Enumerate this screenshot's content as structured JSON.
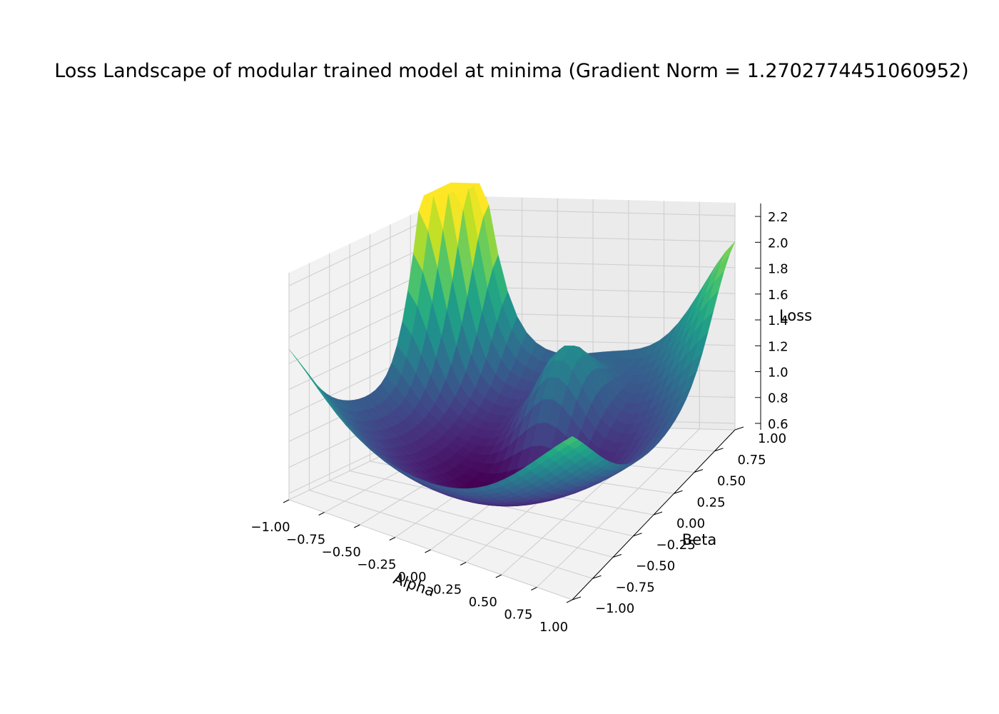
{
  "chart_data": {
    "type": "surface",
    "title": "Loss Landscape of modular trained model at minima (Gradient Norm = 1.2702774451060952)",
    "xlabel": "Alpha",
    "ylabel": "Beta",
    "zlabel": "Loss",
    "xlim": [
      -1.0,
      1.0
    ],
    "ylim": [
      -1.0,
      1.0
    ],
    "zlim": [
      0.55,
      2.3
    ],
    "x_ticks": [
      "−1.00",
      "−0.75",
      "−0.50",
      "−0.25",
      "0.00",
      "0.25",
      "0.50",
      "0.75",
      "1.00"
    ],
    "y_ticks": [
      "−1.00",
      "−0.75",
      "−0.50",
      "−0.25",
      "0.00",
      "0.25",
      "0.50",
      "0.75",
      "1.00"
    ],
    "z_ticks": [
      "0.6",
      "0.8",
      "1.0",
      "1.2",
      "1.4",
      "1.6",
      "1.8",
      "2.0",
      "2.2"
    ],
    "colormap": "viridis",
    "grid": true,
    "surface_features": {
      "grid_resolution": 31,
      "minimum": {
        "alpha": 0.0,
        "beta": 0.0,
        "loss": 0.56
      },
      "peaks": [
        {
          "alpha": -1.0,
          "beta": 0.8,
          "loss": 2.3
        },
        {
          "alpha": -0.95,
          "beta": 1.0,
          "loss": 2.2
        },
        {
          "alpha": 1.0,
          "beta": 0.95,
          "loss": 1.8
        },
        {
          "alpha": 0.1,
          "beta": 0.45,
          "loss": 1.6
        }
      ],
      "edge_loss": {
        "alpha_-1_beta_-1": 1.25,
        "alpha_1_beta_-1": 1.45,
        "alpha_0_beta_-1": 1.0
      }
    }
  }
}
